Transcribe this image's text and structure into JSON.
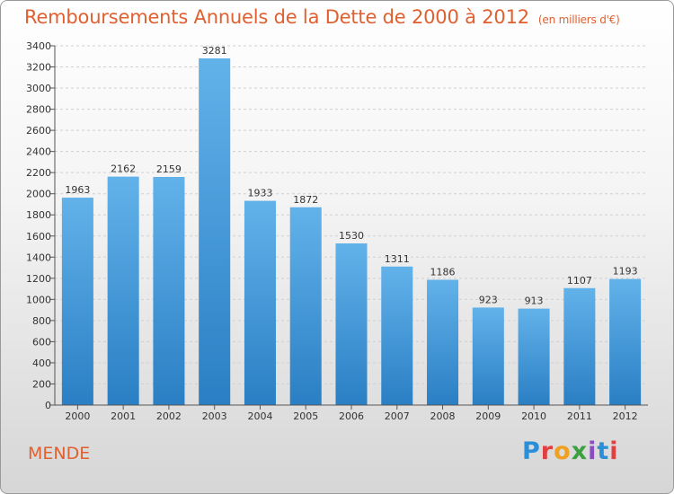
{
  "header": {
    "title": "Remboursements Annuels de la Dette de 2000 à 2012",
    "unit": "(en milliers d'€)"
  },
  "footer": {
    "city": "MENDE",
    "logo_letters": [
      "P",
      "r",
      "o",
      "x",
      "i",
      "t",
      "i"
    ]
  },
  "colors": {
    "bar_top": "#62b2ea",
    "bar_bottom": "#2a7fc4",
    "title": "#e06030"
  },
  "chart_data": {
    "type": "bar",
    "categories": [
      "2000",
      "2001",
      "2002",
      "2003",
      "2004",
      "2005",
      "2006",
      "2007",
      "2008",
      "2009",
      "2010",
      "2011",
      "2012"
    ],
    "values": [
      1963,
      2162,
      2159,
      3281,
      1933,
      1872,
      1530,
      1311,
      1186,
      923,
      913,
      1107,
      1193
    ],
    "ylim": [
      0,
      3400
    ],
    "yticks": [
      0,
      200,
      400,
      600,
      800,
      1000,
      1200,
      1400,
      1600,
      1800,
      2000,
      2200,
      2400,
      2600,
      2800,
      3000,
      3200,
      3400
    ],
    "grid": true
  }
}
